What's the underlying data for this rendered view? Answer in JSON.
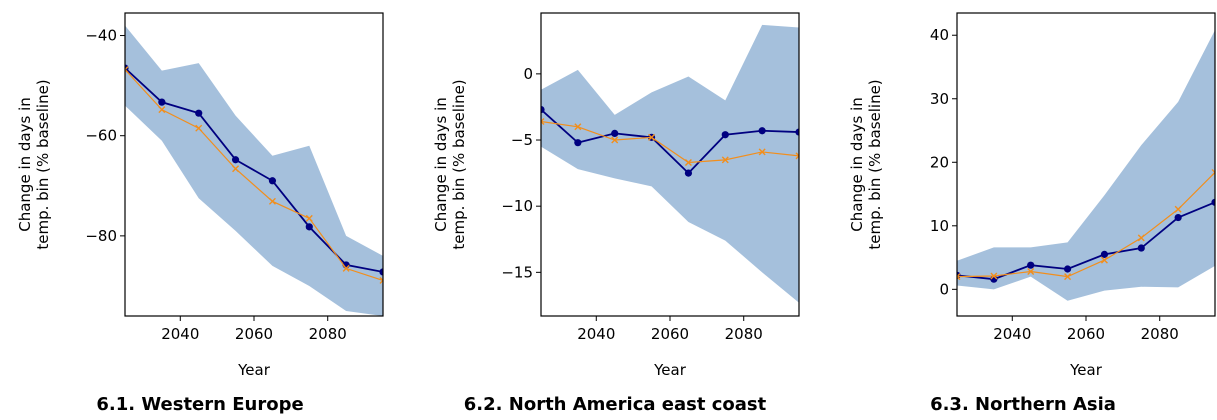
{
  "figure_style": {
    "band_color": "#a5c0dc",
    "main_color": "#000080",
    "alt_color": "#f28e1c"
  },
  "chart_data": [
    {
      "type": "line",
      "caption": "6.1. Western Europe",
      "xlabel": "Year",
      "ylabel_lines": [
        "Change in days in",
        "temp. bin (% baseline)"
      ],
      "xlim": [
        2025,
        2095
      ],
      "ylim": [
        -96,
        -35.5
      ],
      "xticks": [
        2040,
        2060,
        2080
      ],
      "yticks": [
        -40,
        -60,
        -80
      ],
      "ytick_labels": [
        "−40",
        "−60",
        "−80"
      ],
      "x": [
        2025,
        2035,
        2045,
        2055,
        2065,
        2075,
        2085,
        2095
      ],
      "band_x": [
        2025,
        2035,
        2045,
        2055,
        2065,
        2075,
        2085,
        2095
      ],
      "band_upper": [
        -38,
        -47,
        -45.5,
        -56,
        -64,
        -62,
        -80,
        -84
      ],
      "band_lower": [
        -54,
        -61,
        -72.5,
        -79,
        -86,
        -90,
        -95,
        -96
      ],
      "series": [
        {
          "values": [
            -46.5,
            -53.3,
            -55.5,
            -64.8,
            -69,
            -78.2,
            -85.8,
            -87.2
          ]
        },
        {
          "values": [
            -46.8,
            -54.8,
            -58.5,
            -66.6,
            -73.1,
            -76.5,
            -86.5,
            -88.9
          ]
        }
      ]
    },
    {
      "type": "line",
      "caption": "6.2. North America east coast",
      "xlabel": "Year",
      "ylabel_lines": [
        "Change in days in",
        "temp. bin (% baseline)"
      ],
      "xlim": [
        2025,
        2095
      ],
      "ylim": [
        -18.3,
        4.6
      ],
      "xticks": [
        2040,
        2060,
        2080
      ],
      "yticks": [
        0,
        -5,
        -10,
        -15
      ],
      "ytick_labels": [
        "0",
        "−5",
        "−10",
        "−15"
      ],
      "x": [
        2025,
        2035,
        2045,
        2055,
        2065,
        2075,
        2085,
        2095
      ],
      "band_x": [
        2025,
        2035,
        2045,
        2055,
        2065,
        2075,
        2085,
        2095
      ],
      "band_upper": [
        -1.2,
        0.3,
        -3.1,
        -1.4,
        -0.2,
        -2.0,
        3.7,
        3.5
      ],
      "band_lower": [
        -5.5,
        -7.2,
        -7.9,
        -8.5,
        -11.2,
        -12.6,
        -15.0,
        -17.3
      ],
      "series": [
        {
          "values": [
            -2.7,
            -5.2,
            -4.5,
            -4.8,
            -7.5,
            -4.6,
            -4.3,
            -4.4
          ]
        },
        {
          "values": [
            -3.6,
            -4.0,
            -5.0,
            -4.8,
            -6.7,
            -6.5,
            -5.9,
            -6.2
          ]
        }
      ]
    },
    {
      "type": "line",
      "caption": "6.3. Northern Asia",
      "xlabel": "Year",
      "ylabel_lines": [
        "Change in days in",
        "temp. bin (% baseline)"
      ],
      "xlim": [
        2025,
        2095
      ],
      "ylim": [
        -4.2,
        43.5
      ],
      "xticks": [
        2040,
        2060,
        2080
      ],
      "yticks": [
        0,
        10,
        20,
        30,
        40
      ],
      "ytick_labels": [
        "0",
        "10",
        "20",
        "30",
        "40"
      ],
      "x": [
        2025,
        2035,
        2045,
        2055,
        2065,
        2075,
        2085,
        2095
      ],
      "band_x": [
        2025,
        2035,
        2045,
        2055,
        2065,
        2075,
        2085,
        2095
      ],
      "band_upper": [
        4.5,
        6.6,
        6.6,
        7.4,
        14.8,
        22.7,
        29.5,
        40.8
      ],
      "band_lower": [
        0.6,
        0.0,
        2.0,
        -1.8,
        -0.2,
        0.4,
        0.3,
        3.7
      ],
      "series": [
        {
          "values": [
            2.2,
            1.6,
            3.8,
            3.2,
            5.5,
            6.5,
            11.3,
            13.7
          ]
        },
        {
          "values": [
            2.0,
            2.1,
            2.8,
            2.0,
            4.6,
            8.1,
            12.6,
            18.4
          ]
        }
      ]
    }
  ]
}
